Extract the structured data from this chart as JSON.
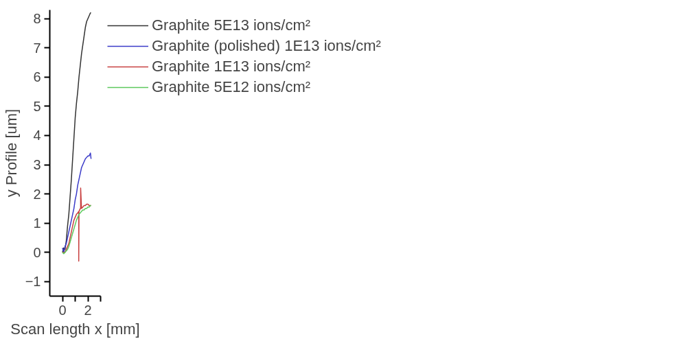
{
  "chart_data": {
    "type": "line",
    "xlabel": "Scan length x [mm]",
    "ylabel": "y Profile [um]",
    "xlim": [
      -1,
      3
    ],
    "ylim": [
      -1.5,
      8.3
    ],
    "xticks": [
      0,
      {
        "value": 1,
        "label": null
      },
      2,
      {
        "value": 3,
        "label": null
      }
    ],
    "yticks": [
      -1,
      0,
      1,
      2,
      3,
      4,
      5,
      6,
      7,
      8
    ],
    "grid": false,
    "legend": "right",
    "line_style": "solid",
    "series": [
      {
        "name": "Graphite 5E13 ions/cm²",
        "color": "#333333",
        "x": [
          0,
          0.1,
          0.2,
          0.3,
          0.4,
          0.5,
          0.6,
          0.7,
          0.8,
          0.9,
          1.0,
          1.1,
          1.2,
          1.3,
          1.4,
          1.5,
          1.6,
          1.7,
          1.8,
          1.9,
          2.0,
          2.1,
          2.2,
          2.25
        ],
        "values": [
          0.0,
          0.15,
          0.1,
          0.4,
          0.9,
          1.3,
          1.9,
          2.5,
          3.2,
          3.9,
          4.6,
          5.1,
          5.5,
          6.0,
          6.4,
          6.8,
          7.1,
          7.4,
          7.7,
          7.9,
          8.0,
          8.1,
          8.2,
          8.2
        ]
      },
      {
        "name": "Graphite (polished) 1E13 ions/cm²",
        "color": "#3a3ac8",
        "x": [
          0,
          0.1,
          0.2,
          0.3,
          0.4,
          0.5,
          0.6,
          0.7,
          0.8,
          0.9,
          1.0,
          1.1,
          1.2,
          1.3,
          1.4,
          1.5,
          1.6,
          1.7,
          1.8,
          1.9,
          2.0,
          2.1,
          2.2,
          2.25
        ],
        "values": [
          0.15,
          0.0,
          0.2,
          0.3,
          0.5,
          0.7,
          0.9,
          1.1,
          1.3,
          1.5,
          1.8,
          2.0,
          2.3,
          2.5,
          2.7,
          2.9,
          3.0,
          3.1,
          3.2,
          3.25,
          3.3,
          3.3,
          3.4,
          3.2
        ]
      },
      {
        "name": "Graphite 1E13 ions/cm²",
        "color": "#c84040",
        "x": [
          0,
          0.1,
          0.2,
          0.3,
          0.4,
          0.5,
          0.6,
          0.7,
          0.8,
          0.9,
          1.0,
          1.1,
          1.2,
          1.28,
          1.28,
          1.3,
          1.4,
          1.43,
          1.43,
          1.5,
          1.6,
          1.7,
          1.8,
          1.9,
          2.0,
          2.1,
          2.2,
          2.25
        ],
        "values": [
          0.0,
          0.0,
          0.0,
          0.1,
          0.2,
          0.3,
          0.5,
          0.7,
          0.9,
          1.1,
          1.2,
          1.3,
          1.35,
          1.4,
          -0.3,
          1.4,
          1.5,
          1.5,
          2.2,
          1.5,
          1.55,
          1.6,
          1.6,
          1.65,
          1.65,
          1.6,
          1.6,
          1.6
        ]
      },
      {
        "name": "Graphite 5E12 ions/cm²",
        "color": "#5cc85c",
        "x": [
          0,
          0.1,
          0.2,
          0.3,
          0.4,
          0.5,
          0.6,
          0.7,
          0.8,
          0.9,
          1.0,
          1.1,
          1.2,
          1.3,
          1.4,
          1.5,
          1.6,
          1.7,
          1.8,
          1.9,
          2.0,
          2.1,
          2.2,
          2.25
        ],
        "values": [
          0.0,
          -0.05,
          0.0,
          0.05,
          0.1,
          0.2,
          0.35,
          0.5,
          0.65,
          0.8,
          0.95,
          1.1,
          1.2,
          1.3,
          1.35,
          1.4,
          1.45,
          1.45,
          1.5,
          1.5,
          1.55,
          1.55,
          1.6,
          1.6
        ]
      }
    ]
  }
}
